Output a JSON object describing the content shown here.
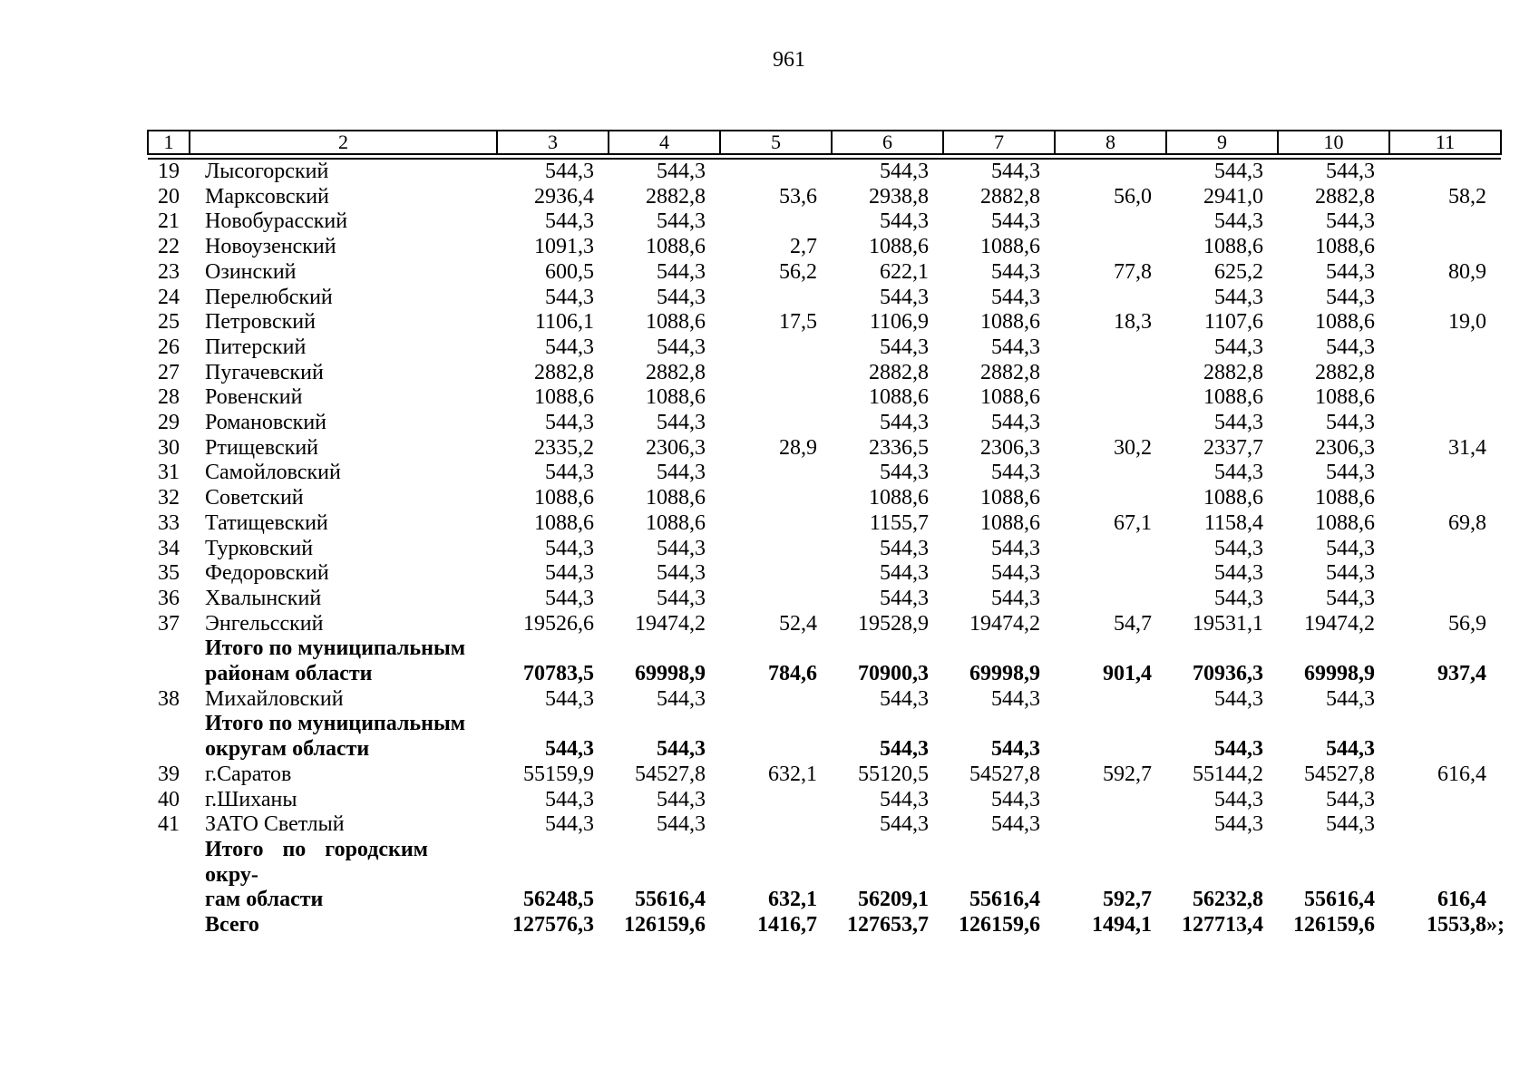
{
  "page": {
    "number": "961"
  },
  "table": {
    "header": [
      "1",
      "2",
      "3",
      "4",
      "5",
      "6",
      "7",
      "8",
      "9",
      "10",
      "11"
    ],
    "rows": [
      {
        "num": "19",
        "name": "Лысогорский",
        "bold": false,
        "values": [
          "544,3",
          "544,3",
          "",
          "544,3",
          "544,3",
          "",
          "544,3",
          "544,3",
          ""
        ]
      },
      {
        "num": "20",
        "name": "Марксовский",
        "bold": false,
        "values": [
          "2936,4",
          "2882,8",
          "53,6",
          "2938,8",
          "2882,8",
          "56,0",
          "2941,0",
          "2882,8",
          "58,2"
        ]
      },
      {
        "num": "21",
        "name": "Новобурасский",
        "bold": false,
        "values": [
          "544,3",
          "544,3",
          "",
          "544,3",
          "544,3",
          "",
          "544,3",
          "544,3",
          ""
        ]
      },
      {
        "num": "22",
        "name": "Новоузенский",
        "bold": false,
        "values": [
          "1091,3",
          "1088,6",
          "2,7",
          "1088,6",
          "1088,6",
          "",
          "1088,6",
          "1088,6",
          ""
        ]
      },
      {
        "num": "23",
        "name": "Озинский",
        "bold": false,
        "values": [
          "600,5",
          "544,3",
          "56,2",
          "622,1",
          "544,3",
          "77,8",
          "625,2",
          "544,3",
          "80,9"
        ]
      },
      {
        "num": "24",
        "name": "Перелюбский",
        "bold": false,
        "values": [
          "544,3",
          "544,3",
          "",
          "544,3",
          "544,3",
          "",
          "544,3",
          "544,3",
          ""
        ]
      },
      {
        "num": "25",
        "name": "Петровский",
        "bold": false,
        "values": [
          "1106,1",
          "1088,6",
          "17,5",
          "1106,9",
          "1088,6",
          "18,3",
          "1107,6",
          "1088,6",
          "19,0"
        ]
      },
      {
        "num": "26",
        "name": "Питерский",
        "bold": false,
        "values": [
          "544,3",
          "544,3",
          "",
          "544,3",
          "544,3",
          "",
          "544,3",
          "544,3",
          ""
        ]
      },
      {
        "num": "27",
        "name": "Пугачевский",
        "bold": false,
        "values": [
          "2882,8",
          "2882,8",
          "",
          "2882,8",
          "2882,8",
          "",
          "2882,8",
          "2882,8",
          ""
        ]
      },
      {
        "num": "28",
        "name": "Ровенский",
        "bold": false,
        "values": [
          "1088,6",
          "1088,6",
          "",
          "1088,6",
          "1088,6",
          "",
          "1088,6",
          "1088,6",
          ""
        ]
      },
      {
        "num": "29",
        "name": "Романовский",
        "bold": false,
        "values": [
          "544,3",
          "544,3",
          "",
          "544,3",
          "544,3",
          "",
          "544,3",
          "544,3",
          ""
        ]
      },
      {
        "num": "30",
        "name": "Ртищевский",
        "bold": false,
        "values": [
          "2335,2",
          "2306,3",
          "28,9",
          "2336,5",
          "2306,3",
          "30,2",
          "2337,7",
          "2306,3",
          "31,4"
        ]
      },
      {
        "num": "31",
        "name": "Самойловский",
        "bold": false,
        "values": [
          "544,3",
          "544,3",
          "",
          "544,3",
          "544,3",
          "",
          "544,3",
          "544,3",
          ""
        ]
      },
      {
        "num": "32",
        "name": "Советский",
        "bold": false,
        "values": [
          "1088,6",
          "1088,6",
          "",
          "1088,6",
          "1088,6",
          "",
          "1088,6",
          "1088,6",
          ""
        ]
      },
      {
        "num": "33",
        "name": "Татищевский",
        "bold": false,
        "values": [
          "1088,6",
          "1088,6",
          "",
          "1155,7",
          "1088,6",
          "67,1",
          "1158,4",
          "1088,6",
          "69,8"
        ]
      },
      {
        "num": "34",
        "name": "Турковский",
        "bold": false,
        "values": [
          "544,3",
          "544,3",
          "",
          "544,3",
          "544,3",
          "",
          "544,3",
          "544,3",
          ""
        ]
      },
      {
        "num": "35",
        "name": "Федоровский",
        "bold": false,
        "values": [
          "544,3",
          "544,3",
          "",
          "544,3",
          "544,3",
          "",
          "544,3",
          "544,3",
          ""
        ]
      },
      {
        "num": "36",
        "name": "Хвалынский",
        "bold": false,
        "values": [
          "544,3",
          "544,3",
          "",
          "544,3",
          "544,3",
          "",
          "544,3",
          "544,3",
          ""
        ]
      },
      {
        "num": "37",
        "name": "Энгельсский",
        "bold": false,
        "values": [
          "19526,6",
          "19474,2",
          "52,4",
          "19528,9",
          "19474,2",
          "54,7",
          "19531,1",
          "19474,2",
          "56,9"
        ]
      },
      {
        "num": "",
        "name": "Итого по муниципальным\nрайонам области",
        "bold": true,
        "total": true,
        "values": [
          "70783,5",
          "69998,9",
          "784,6",
          "70900,3",
          "69998,9",
          "901,4",
          "70936,3",
          "69998,9",
          "937,4"
        ]
      },
      {
        "num": "38",
        "name": "Михайловский",
        "bold": false,
        "values": [
          "544,3",
          "544,3",
          "",
          "544,3",
          "544,3",
          "",
          "544,3",
          "544,3",
          ""
        ]
      },
      {
        "num": "",
        "name": "Итого по муниципальным\nокругам области",
        "bold": true,
        "total": true,
        "values": [
          "544,3",
          "544,3",
          "",
          "544,3",
          "544,3",
          "",
          "544,3",
          "544,3",
          ""
        ]
      },
      {
        "num": "39",
        "name": "г.Саратов",
        "bold": false,
        "values": [
          "55159,9",
          "54527,8",
          "632,1",
          "55120,5",
          "54527,8",
          "592,7",
          "55144,2",
          "54527,8",
          "616,4"
        ]
      },
      {
        "num": "40",
        "name": "г.Шиханы",
        "bold": false,
        "values": [
          "544,3",
          "544,3",
          "",
          "544,3",
          "544,3",
          "",
          "544,3",
          "544,3",
          ""
        ]
      },
      {
        "num": "41",
        "name": "ЗАТО Светлый",
        "bold": false,
        "values": [
          "544,3",
          "544,3",
          "",
          "544,3",
          "544,3",
          "",
          "544,3",
          "544,3",
          ""
        ]
      },
      {
        "num": "",
        "name": "Итого по городским окру-\nгам области",
        "bold": true,
        "total": true,
        "justify": true,
        "values": [
          "56248,5",
          "55616,4",
          "632,1",
          "56209,1",
          "55616,4",
          "592,7",
          "56232,8",
          "55616,4",
          "616,4"
        ]
      },
      {
        "num": "",
        "name": "Всего",
        "bold": true,
        "total": true,
        "values": [
          "127576,3",
          "126159,6",
          "1416,7",
          "127653,7",
          "126159,6",
          "1494,1",
          "127713,4",
          "126159,6",
          "1553,8"
        ],
        "suffix": "»;"
      }
    ]
  }
}
